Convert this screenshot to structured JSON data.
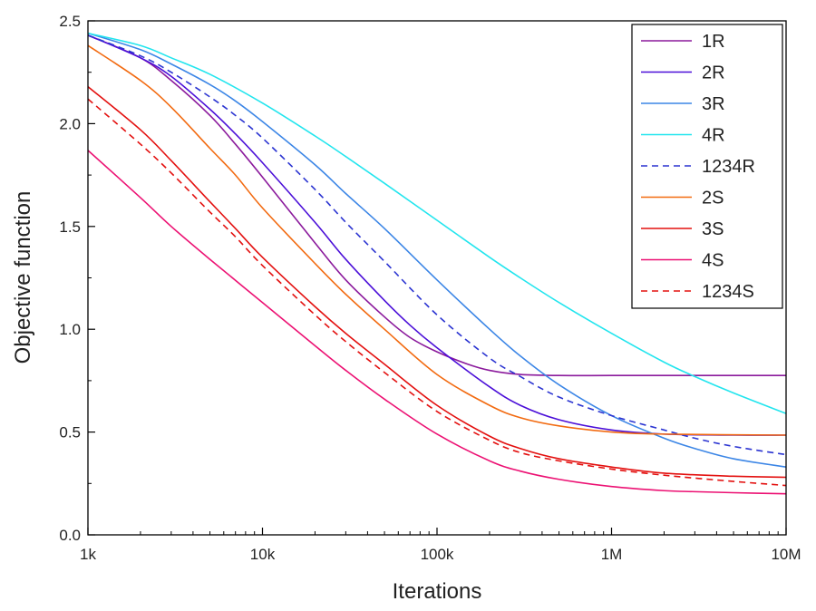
{
  "chart_data": {
    "type": "line",
    "title": "",
    "xlabel": "Iterations",
    "ylabel": "Objective function",
    "x_scale": "log",
    "xlim": [
      1000,
      10000000
    ],
    "ylim": [
      0,
      2.5
    ],
    "grid": false,
    "legend_position": "top-right",
    "x_ticks": [
      {
        "value": 1000,
        "label": "1k"
      },
      {
        "value": 10000,
        "label": "10k"
      },
      {
        "value": 100000,
        "label": "100k"
      },
      {
        "value": 1000000,
        "label": "1M"
      },
      {
        "value": 10000000,
        "label": "10M"
      }
    ],
    "y_ticks": [
      {
        "value": 0.0,
        "label": "0.0"
      },
      {
        "value": 0.5,
        "label": "0.5"
      },
      {
        "value": 1.0,
        "label": "1.0"
      },
      {
        "value": 1.5,
        "label": "1.5"
      },
      {
        "value": 2.0,
        "label": "2.0"
      },
      {
        "value": 2.5,
        "label": "2.5"
      }
    ],
    "series": [
      {
        "name": "1R",
        "color": "#8B1A9C",
        "dashed": false,
        "x": [
          1000,
          2000,
          3000,
          5000,
          7000,
          10000,
          20000,
          30000,
          50000,
          70000,
          100000,
          150000,
          200000,
          300000,
          500000,
          1000000,
          3000000,
          10000000
        ],
        "y": [
          2.43,
          2.32,
          2.21,
          2.04,
          1.9,
          1.74,
          1.42,
          1.24,
          1.06,
          0.96,
          0.89,
          0.83,
          0.8,
          0.78,
          0.775,
          0.775,
          0.775,
          0.775
        ]
      },
      {
        "name": "2R",
        "color": "#4B0FD8",
        "dashed": false,
        "x": [
          1000,
          2000,
          3000,
          5000,
          7000,
          10000,
          20000,
          30000,
          50000,
          70000,
          100000,
          200000,
          300000,
          500000,
          1000000,
          2000000,
          5000000,
          10000000
        ],
        "y": [
          2.43,
          2.32,
          2.23,
          2.07,
          1.95,
          1.81,
          1.52,
          1.34,
          1.14,
          1.02,
          0.91,
          0.72,
          0.63,
          0.56,
          0.51,
          0.49,
          0.485,
          0.485
        ]
      },
      {
        "name": "3R",
        "color": "#3C86E6",
        "dashed": false,
        "x": [
          1000,
          2000,
          3000,
          5000,
          7000,
          10000,
          20000,
          30000,
          50000,
          100000,
          200000,
          300000,
          500000,
          1000000,
          2000000,
          3000000,
          5000000,
          10000000
        ],
        "y": [
          2.44,
          2.36,
          2.29,
          2.19,
          2.11,
          2.01,
          1.8,
          1.66,
          1.49,
          1.24,
          1.0,
          0.87,
          0.73,
          0.58,
          0.47,
          0.42,
          0.37,
          0.33
        ]
      },
      {
        "name": "4R",
        "color": "#22E5EE",
        "dashed": false,
        "x": [
          1000,
          2000,
          3000,
          5000,
          10000,
          20000,
          30000,
          50000,
          100000,
          200000,
          300000,
          500000,
          1000000,
          2000000,
          3000000,
          5000000,
          10000000
        ],
        "y": [
          2.44,
          2.38,
          2.32,
          2.24,
          2.1,
          1.94,
          1.84,
          1.71,
          1.53,
          1.35,
          1.25,
          1.13,
          0.98,
          0.84,
          0.77,
          0.69,
          0.59
        ]
      },
      {
        "name": "1234R",
        "color": "#2B34D1",
        "dashed": true,
        "x": [
          1000,
          2000,
          3000,
          5000,
          7000,
          10000,
          20000,
          30000,
          50000,
          100000,
          200000,
          300000,
          500000,
          1000000,
          2000000,
          3000000,
          5000000,
          10000000
        ],
        "y": [
          2.43,
          2.33,
          2.25,
          2.13,
          2.04,
          1.93,
          1.68,
          1.52,
          1.33,
          1.07,
          0.86,
          0.77,
          0.67,
          0.58,
          0.51,
          0.47,
          0.43,
          0.39
        ]
      },
      {
        "name": "2S",
        "color": "#F26A10",
        "dashed": false,
        "x": [
          1000,
          2000,
          3000,
          5000,
          7000,
          10000,
          20000,
          30000,
          50000,
          100000,
          200000,
          300000,
          500000,
          1000000,
          2000000,
          10000000
        ],
        "y": [
          2.38,
          2.21,
          2.08,
          1.88,
          1.75,
          1.59,
          1.32,
          1.17,
          1.0,
          0.78,
          0.63,
          0.57,
          0.53,
          0.5,
          0.49,
          0.485
        ]
      },
      {
        "name": "3S",
        "color": "#E3100F",
        "dashed": false,
        "x": [
          1000,
          2000,
          3000,
          5000,
          7000,
          10000,
          20000,
          30000,
          50000,
          100000,
          200000,
          300000,
          500000,
          1000000,
          2000000,
          5000000,
          10000000
        ],
        "y": [
          2.18,
          1.97,
          1.82,
          1.62,
          1.49,
          1.35,
          1.11,
          0.98,
          0.83,
          0.63,
          0.48,
          0.42,
          0.37,
          0.33,
          0.3,
          0.285,
          0.28
        ]
      },
      {
        "name": "4S",
        "color": "#EC1173",
        "dashed": false,
        "x": [
          1000,
          2000,
          3000,
          5000,
          10000,
          20000,
          30000,
          50000,
          100000,
          200000,
          300000,
          500000,
          1000000,
          2000000,
          3000000,
          5000000,
          10000000
        ],
        "y": [
          1.87,
          1.64,
          1.5,
          1.34,
          1.13,
          0.92,
          0.8,
          0.66,
          0.49,
          0.36,
          0.31,
          0.27,
          0.235,
          0.215,
          0.21,
          0.205,
          0.2
        ]
      },
      {
        "name": "1234S",
        "color": "#E3100F",
        "dashed": true,
        "x": [
          1000,
          2000,
          3000,
          5000,
          7000,
          10000,
          20000,
          30000,
          50000,
          100000,
          200000,
          300000,
          500000,
          1000000,
          2000000,
          5000000,
          10000000
        ],
        "y": [
          2.12,
          1.9,
          1.76,
          1.57,
          1.45,
          1.31,
          1.07,
          0.94,
          0.79,
          0.6,
          0.46,
          0.4,
          0.36,
          0.32,
          0.29,
          0.26,
          0.24
        ]
      }
    ]
  }
}
